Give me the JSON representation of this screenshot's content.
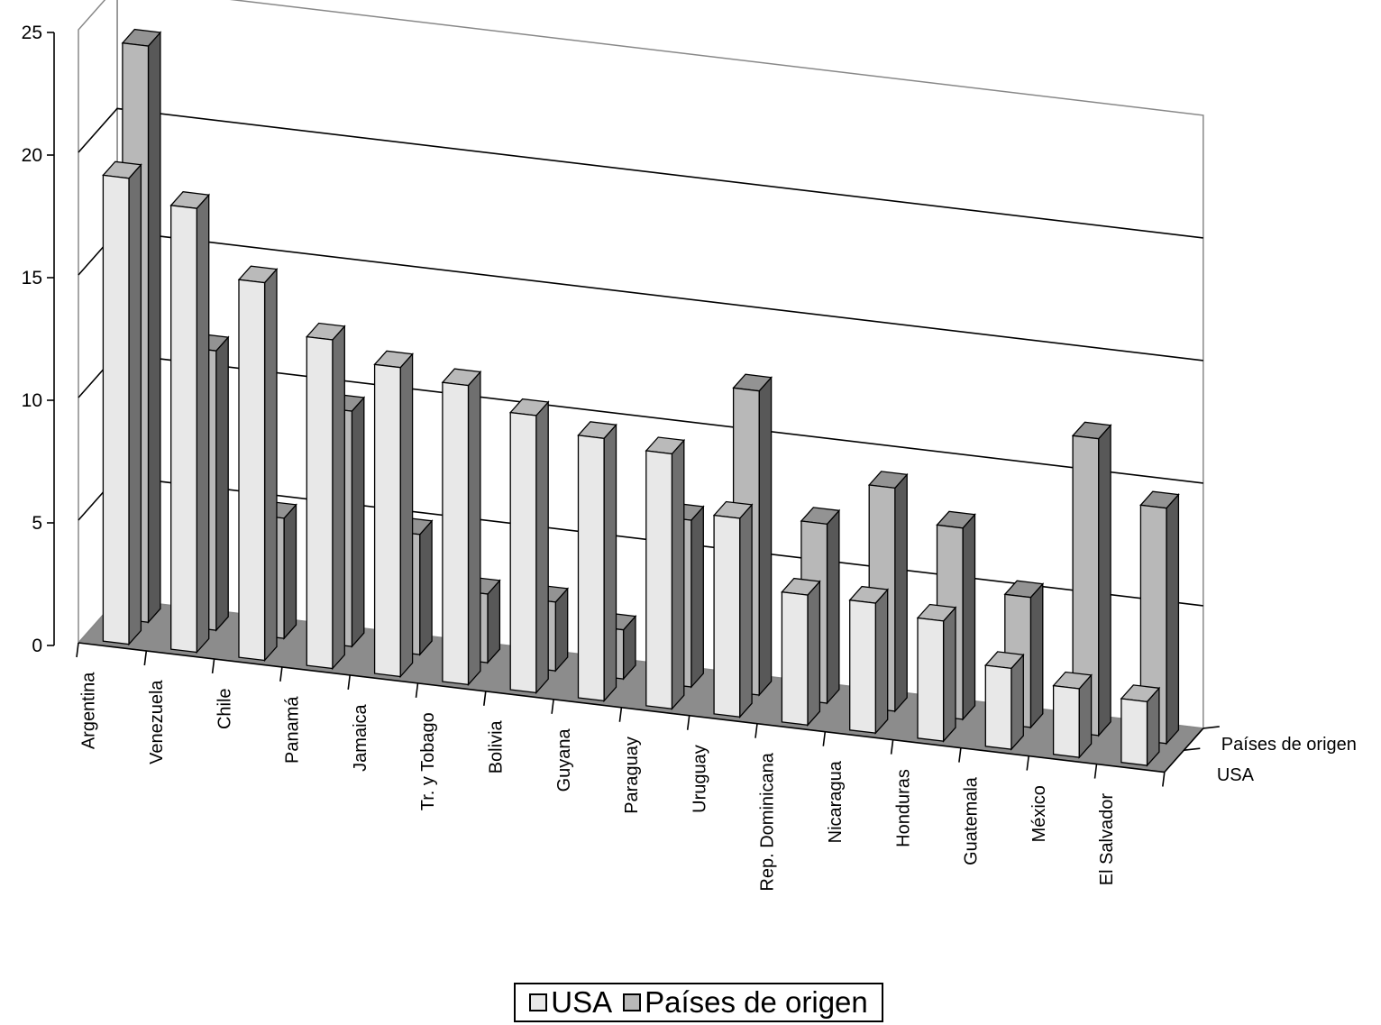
{
  "chart_data": {
    "type": "bar",
    "variant": "3d-grouped-depth",
    "title": "",
    "xlabel": "",
    "ylabel": "",
    "ylim": [
      0,
      25
    ],
    "yticks": [
      0,
      5,
      10,
      15,
      20,
      25
    ],
    "grid": true,
    "legend_position": "bottom",
    "categories": [
      "Argentina",
      "Venezuela",
      "Chile",
      "Panamá",
      "Jamaica",
      "Tr. y Tobago",
      "Bolivia",
      "Guyana",
      "Paraguay",
      "Uruguay",
      "Rep. Dominicana",
      "Nicaragua",
      "Honduras",
      "Guatemala",
      "México",
      "El Salvador"
    ],
    "series": [
      {
        "name": "USA",
        "color": "#e8e8e8",
        "values": [
          19.0,
          18.1,
          15.4,
          13.4,
          12.6,
          12.2,
          11.3,
          10.7,
          10.4,
          8.1,
          5.3,
          5.3,
          4.9,
          3.3,
          2.8,
          2.6
        ]
      },
      {
        "name": "Países de origen",
        "color": "#b8b8b8",
        "values": [
          23.5,
          11.4,
          4.9,
          9.6,
          4.9,
          2.8,
          2.8,
          2.0,
          6.8,
          12.4,
          7.3,
          9.1,
          7.8,
          5.3,
          12.1,
          9.6
        ]
      }
    ],
    "depth_axis_labels": [
      "USA",
      "Países de origen"
    ]
  },
  "legend": {
    "items": [
      {
        "label": "USA",
        "color": "#e8e8e8"
      },
      {
        "label": "Países de origen",
        "color": "#b8b8b8"
      }
    ]
  }
}
